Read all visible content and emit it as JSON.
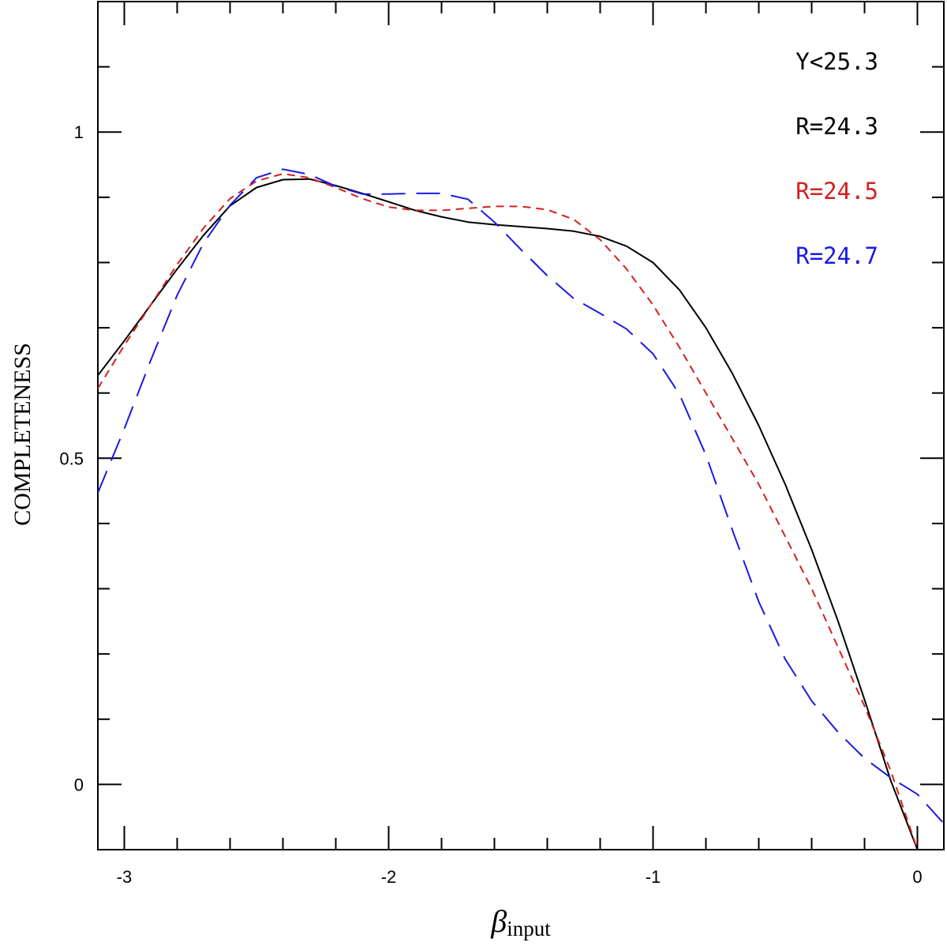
{
  "chart_data": {
    "type": "line",
    "title": "",
    "xlabel": "β",
    "xlabel_subscript": "input",
    "ylabel": "COMPLETENESS",
    "xlim": [
      -3.1,
      0.1
    ],
    "ylim": [
      -0.1,
      1.2
    ],
    "x_major_ticks": [
      -3,
      -2,
      -1,
      0
    ],
    "x_tick_labels": [
      "-3",
      "-2",
      "-1",
      "0"
    ],
    "x_minor_step": 0.2,
    "y_major_ticks": [
      0,
      0.5,
      1
    ],
    "y_tick_labels": [
      "0",
      "0.5",
      "1"
    ],
    "y_minor_step": 0.1,
    "grid": false,
    "legend": {
      "placement": "top-right",
      "title": "Y<25.3",
      "title_color": "#000000"
    },
    "series": [
      {
        "name": "R=24.3",
        "color": "#000000",
        "style": "solid",
        "x": [
          -3.1,
          -3.0,
          -2.9,
          -2.8,
          -2.7,
          -2.6,
          -2.5,
          -2.4,
          -2.3,
          -2.2,
          -2.1,
          -2.0,
          -1.9,
          -1.8,
          -1.7,
          -1.6,
          -1.5,
          -1.4,
          -1.3,
          -1.2,
          -1.1,
          -1.0,
          -0.9,
          -0.8,
          -0.7,
          -0.6,
          -0.5,
          -0.4,
          -0.3,
          -0.2,
          -0.1,
          0.0
        ],
        "values": [
          0.627,
          0.68,
          0.735,
          0.79,
          0.842,
          0.887,
          0.915,
          0.927,
          0.928,
          0.918,
          0.906,
          0.893,
          0.88,
          0.87,
          0.862,
          0.858,
          0.855,
          0.852,
          0.848,
          0.84,
          0.825,
          0.8,
          0.758,
          0.7,
          0.63,
          0.55,
          0.46,
          0.36,
          0.25,
          0.13,
          0.005,
          -0.1
        ]
      },
      {
        "name": "R=24.5",
        "color": "#d42020",
        "style": "short-dash",
        "x": [
          -3.1,
          -3.0,
          -2.9,
          -2.8,
          -2.7,
          -2.6,
          -2.5,
          -2.4,
          -2.3,
          -2.2,
          -2.1,
          -2.0,
          -1.9,
          -1.8,
          -1.7,
          -1.6,
          -1.5,
          -1.4,
          -1.3,
          -1.2,
          -1.1,
          -1.0,
          -0.9,
          -0.8,
          -0.7,
          -0.6,
          -0.5,
          -0.4,
          -0.3,
          -0.2,
          -0.1,
          0.0
        ],
        "values": [
          0.607,
          0.673,
          0.735,
          0.797,
          0.853,
          0.898,
          0.925,
          0.936,
          0.93,
          0.915,
          0.898,
          0.885,
          0.88,
          0.88,
          0.883,
          0.886,
          0.886,
          0.881,
          0.866,
          0.835,
          0.79,
          0.735,
          0.67,
          0.6,
          0.53,
          0.46,
          0.38,
          0.3,
          0.21,
          0.12,
          0.02,
          -0.1
        ]
      },
      {
        "name": "R=24.7",
        "color": "#1a1ae6",
        "style": "long-dash",
        "x": [
          -3.1,
          -3.0,
          -2.9,
          -2.8,
          -2.7,
          -2.6,
          -2.5,
          -2.4,
          -2.3,
          -2.2,
          -2.1,
          -2.0,
          -1.9,
          -1.8,
          -1.7,
          -1.6,
          -1.5,
          -1.4,
          -1.3,
          -1.2,
          -1.1,
          -1.0,
          -0.9,
          -0.8,
          -0.7,
          -0.6,
          -0.5,
          -0.4,
          -0.3,
          -0.2,
          -0.1,
          0.0,
          0.1
        ],
        "values": [
          0.447,
          0.545,
          0.65,
          0.75,
          0.83,
          0.888,
          0.93,
          0.943,
          0.935,
          0.917,
          0.905,
          0.905,
          0.906,
          0.906,
          0.897,
          0.862,
          0.82,
          0.78,
          0.745,
          0.722,
          0.698,
          0.66,
          0.598,
          0.505,
          0.39,
          0.28,
          0.192,
          0.128,
          0.08,
          0.04,
          0.01,
          -0.015,
          -0.06
        ]
      }
    ]
  }
}
